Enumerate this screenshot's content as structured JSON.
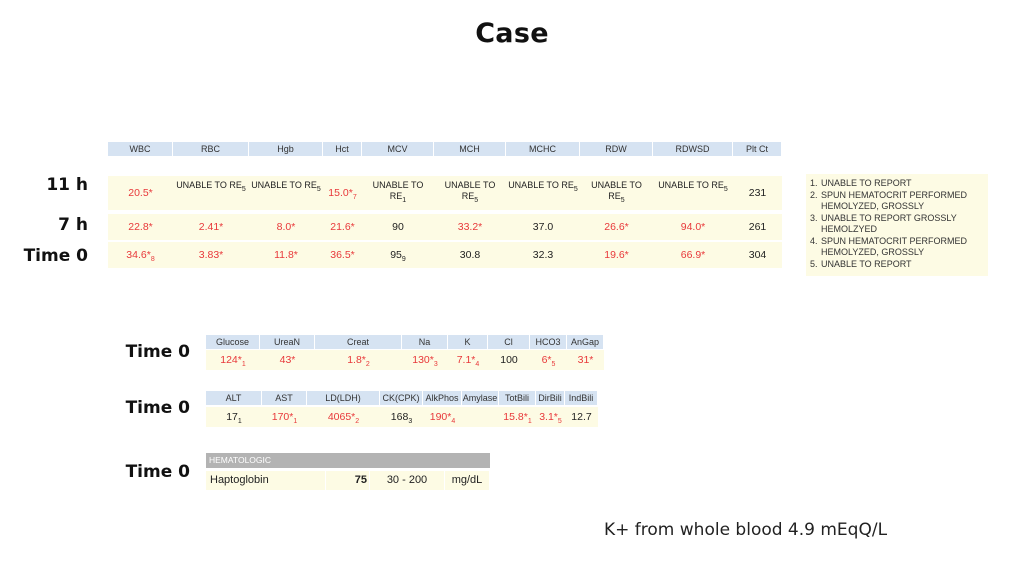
{
  "title": "Case",
  "cbc": {
    "headers": [
      "WBC",
      "RBC",
      "Hgb",
      "Hct",
      "MCV",
      "MCH",
      "MCHC",
      "RDW",
      "RDWSD",
      "Plt Ct"
    ],
    "rows": [
      {
        "label": "11 h",
        "cells": [
          {
            "v": "20.5*",
            "s": "",
            "red": true
          },
          {
            "v": "UNABLE TO RE",
            "s": "5",
            "red": false,
            "wrap": true
          },
          {
            "v": "UNABLE TO RE",
            "s": "5",
            "red": false,
            "wrap": true
          },
          {
            "v": "15.0*",
            "s": "7",
            "red": true
          },
          {
            "v": "UNABLE TO RE",
            "s": "1",
            "red": false,
            "wrap": true
          },
          {
            "v": "UNABLE TO RE",
            "s": "5",
            "red": false,
            "wrap": true
          },
          {
            "v": "UNABLE TO RE",
            "s": "5",
            "red": false,
            "wrap": true
          },
          {
            "v": "UNABLE TO RE",
            "s": "5",
            "red": false,
            "wrap": true
          },
          {
            "v": "UNABLE TO RE",
            "s": "5",
            "red": false,
            "wrap": true
          },
          {
            "v": "231",
            "s": "",
            "red": false
          }
        ]
      },
      {
        "label": "7 h",
        "cells": [
          {
            "v": "22.8*",
            "s": "",
            "red": true
          },
          {
            "v": "2.41*",
            "s": "",
            "red": true
          },
          {
            "v": "8.0*",
            "s": "",
            "red": true
          },
          {
            "v": "21.6*",
            "s": "",
            "red": true
          },
          {
            "v": "90",
            "s": "",
            "red": false
          },
          {
            "v": "33.2*",
            "s": "",
            "red": true
          },
          {
            "v": "37.0",
            "s": "",
            "red": false
          },
          {
            "v": "26.6*",
            "s": "",
            "red": true
          },
          {
            "v": "94.0*",
            "s": "",
            "red": true
          },
          {
            "v": "261",
            "s": "",
            "red": false
          }
        ]
      },
      {
        "label": "Time 0",
        "cells": [
          {
            "v": "34.6*",
            "s": "8",
            "red": true
          },
          {
            "v": "3.83*",
            "s": "",
            "red": true
          },
          {
            "v": "11.8*",
            "s": "",
            "red": true
          },
          {
            "v": "36.5*",
            "s": "",
            "red": true
          },
          {
            "v": "95",
            "s": "9",
            "red": false
          },
          {
            "v": "30.8",
            "s": "",
            "red": false
          },
          {
            "v": "32.3",
            "s": "",
            "red": false
          },
          {
            "v": "19.6*",
            "s": "",
            "red": true
          },
          {
            "v": "66.9*",
            "s": "",
            "red": true
          },
          {
            "v": "304",
            "s": "",
            "red": false
          }
        ]
      }
    ]
  },
  "notes": [
    {
      "n": "1.",
      "t": "UNABLE TO REPORT"
    },
    {
      "n": "2.",
      "t": "SPUN HEMATOCRIT PERFORMED HEMOLYZED, GROSSLY"
    },
    {
      "n": "3.",
      "t": "UNABLE TO REPORT GROSSLY HEMOLZYED"
    },
    {
      "n": "4.",
      "t": "SPUN HEMATOCRIT PERFORMED HEMOLYZED, GROSSLY"
    },
    {
      "n": "5.",
      "t": "UNABLE TO REPORT"
    }
  ],
  "chem": {
    "label": "Time 0",
    "headers": [
      "Glucose",
      "UreaN",
      "Creat",
      "Na",
      "K",
      "Cl",
      "HCO3",
      "AnGap"
    ],
    "cells": [
      {
        "v": "124*",
        "s": "1",
        "red": true
      },
      {
        "v": "43*",
        "s": "",
        "red": true
      },
      {
        "v": "1.8*",
        "s": "2",
        "red": true
      },
      {
        "v": "130*",
        "s": "3",
        "red": true
      },
      {
        "v": "7.1*",
        "s": "4",
        "red": true
      },
      {
        "v": "100",
        "s": "",
        "red": false
      },
      {
        "v": "6*",
        "s": "5",
        "red": true
      },
      {
        "v": "31*",
        "s": "",
        "red": true
      }
    ]
  },
  "lft": {
    "label": "Time 0",
    "headers": [
      "ALT",
      "AST",
      "LD(LDH)",
      "CK(CPK)",
      "AlkPhos",
      "Amylase",
      "TotBili",
      "DirBili",
      "IndBili"
    ],
    "cells": [
      {
        "v": "17",
        "s": "1",
        "red": false
      },
      {
        "v": "170*",
        "s": "1",
        "red": true
      },
      {
        "v": "4065*",
        "s": "2",
        "red": true
      },
      {
        "v": "168",
        "s": "3",
        "red": false
      },
      {
        "v": "190*",
        "s": "4",
        "red": true
      },
      {
        "v": "",
        "s": "",
        "red": false
      },
      {
        "v": "15.8*",
        "s": "1",
        "red": true
      },
      {
        "v": "3.1*",
        "s": "5",
        "red": true
      },
      {
        "v": "12.7",
        "s": "",
        "red": false
      }
    ]
  },
  "hemat": {
    "label": "Time 0",
    "section": "HEMATOLOGIC",
    "test": "Haptoglobin",
    "value": "75",
    "range": "30 - 200",
    "unit": "mg/dL"
  },
  "footer": "K+ from whole blood 4.9 mEqQ/L"
}
